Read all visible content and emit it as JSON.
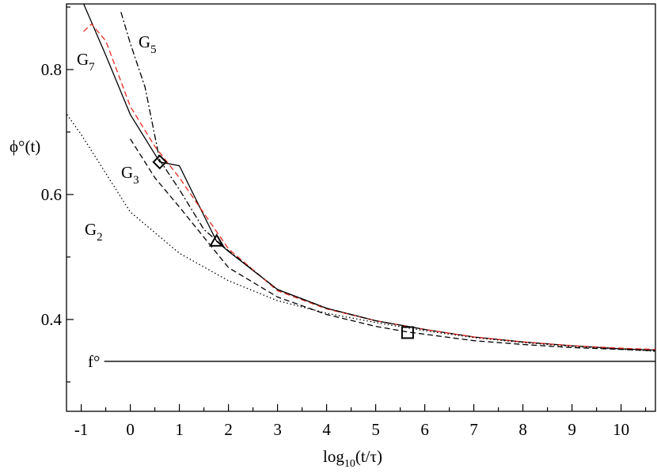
{
  "chart_data": {
    "type": "line",
    "x_label": {
      "main": "log",
      "sub": "10",
      "rest": "(t/τ)"
    },
    "y_label": "ϕ°(t)",
    "xlim": [
      -1.3,
      10.7
    ],
    "ylim": [
      0.253,
      0.905
    ],
    "xticks": [
      -1,
      0,
      1,
      2,
      3,
      4,
      5,
      6,
      7,
      8,
      9,
      10
    ],
    "xticks_minor": [
      -0.5,
      0.5,
      1.5,
      2.5,
      3.5,
      4.5,
      5.5,
      6.5,
      7.5,
      8.5,
      9.5,
      10.5
    ],
    "yticks": [
      0.4,
      0.6,
      0.8
    ],
    "yticks_minor": [
      0.3,
      0.5,
      0.7,
      0.9
    ],
    "series": [
      {
        "name": "G",
        "subscript": "7",
        "color": "#000000",
        "style": "solid",
        "x": [
          -0.95,
          -0.5,
          0,
          0.6,
          1,
          1.76,
          2,
          3,
          4,
          5,
          6,
          7,
          8,
          9,
          10,
          10.7
        ],
        "values": [
          0.905,
          0.823,
          0.728,
          0.652,
          0.646,
          0.525,
          0.509,
          0.448,
          0.418,
          0.398,
          0.384,
          0.372,
          0.364,
          0.358,
          0.353,
          0.351
        ]
      },
      {
        "color": "#e8281e",
        "style": "dashed",
        "x": [
          -0.95,
          -0.79,
          -0.5,
          0,
          0.5,
          1,
          2,
          3,
          4,
          5,
          6,
          7,
          8,
          9,
          10,
          10.7
        ],
        "values": [
          0.861,
          0.873,
          0.846,
          0.741,
          0.677,
          0.627,
          0.513,
          0.446,
          0.417,
          0.398,
          0.384,
          0.372,
          0.364,
          0.358,
          0.354,
          0.352
        ]
      },
      {
        "name": "G",
        "subscript": "5",
        "color": "#000000",
        "style": "dashdot",
        "x": [
          -0.19,
          0,
          0.3,
          0.6,
          1,
          1.5,
          2,
          3,
          4,
          5,
          6
        ],
        "values": [
          0.892,
          0.842,
          0.772,
          0.655,
          0.608,
          0.544,
          0.51,
          0.448,
          0.418,
          0.398,
          0.384
        ]
      },
      {
        "name": "G",
        "subscript": "3",
        "color": "#000000",
        "style": "dashed",
        "x": [
          0,
          0.5,
          1,
          2,
          3,
          4,
          5,
          5.65,
          7,
          8,
          9,
          10.7
        ],
        "values": [
          0.689,
          0.627,
          0.58,
          0.483,
          0.436,
          0.408,
          0.389,
          0.38,
          0.366,
          0.36,
          0.355,
          0.35
        ]
      },
      {
        "name": "G",
        "subscript": "2",
        "color": "#000000",
        "style": "dotted",
        "x": [
          -1.29,
          -1,
          0,
          1,
          2,
          3,
          4,
          5,
          6,
          7,
          8,
          9,
          10.7
        ],
        "values": [
          0.728,
          0.696,
          0.572,
          0.506,
          0.462,
          0.43,
          0.41,
          0.395,
          0.382,
          0.371,
          0.363,
          0.357,
          0.349
        ]
      },
      {
        "name": "f°",
        "color": "#000000",
        "style": "solid",
        "x": [
          -0.53,
          10.7
        ],
        "values": [
          0.333,
          0.333
        ]
      }
    ],
    "markers": [
      {
        "shape": "diamond",
        "x": 0.6,
        "y": 0.652
      },
      {
        "shape": "triangle",
        "x": 1.76,
        "y": 0.525
      },
      {
        "shape": "square",
        "x": 5.65,
        "y": 0.379
      }
    ]
  }
}
